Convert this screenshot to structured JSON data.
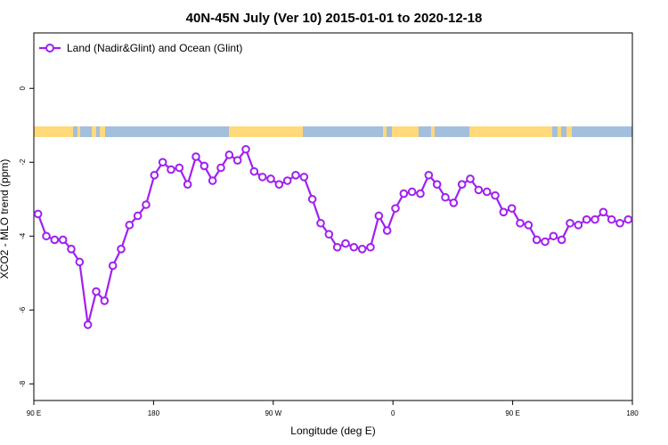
{
  "chart_data": {
    "type": "line",
    "title": "40N-45N July (Ver 10)   2015-01-01 to 2020-12-18",
    "xlabel": "Longitude (deg E)",
    "ylabel": "XCO2 - MLO trend (ppm)",
    "xlim": [
      90,
      450
    ],
    "ylim": [
      -8.45,
      1.5
    ],
    "x_ticks": [
      {
        "value": 90,
        "label": "90 E"
      },
      {
        "value": 162,
        "label": "180"
      },
      {
        "value": 234,
        "label": "90 W"
      },
      {
        "value": 306,
        "label": "0"
      },
      {
        "value": 378,
        "label": "90 E"
      },
      {
        "value": 450,
        "label": "180"
      }
    ],
    "y_ticks": [
      0,
      -2,
      -4,
      -6,
      -8
    ],
    "y_tick_labels": [
      "0",
      "-2",
      "-4",
      "-6",
      "-8"
    ],
    "grid": false,
    "legend_position": "top-left",
    "series": [
      {
        "name": "Land (Nadir&Glint) and Ocean (Glint)",
        "color": "#a020f0",
        "x": [
          92.5,
          97.5,
          102.5,
          107.5,
          112.5,
          117.5,
          122.5,
          127.5,
          132.5,
          137.5,
          142.5,
          147.5,
          152.5,
          157.5,
          162.5,
          167.5,
          172.5,
          177.5,
          182.5,
          187.5,
          192.5,
          197.5,
          202.5,
          207.5,
          212.5,
          217.5,
          222.5,
          227.5,
          232.5,
          237.5,
          242.5,
          247.5,
          252.5,
          257.5,
          262.5,
          267.5,
          272.5,
          277.5,
          282.5,
          287.5,
          292.5,
          297.5,
          302.5,
          307.5,
          312.5,
          317.5,
          322.5,
          327.5,
          332.5,
          337.5,
          342.5,
          347.5,
          352.5,
          357.5,
          362.5,
          367.5,
          372.5,
          377.5,
          382.5,
          387.5,
          392.5,
          397.5,
          402.5,
          407.5,
          412.5,
          417.5,
          422.5,
          427.5,
          432.5,
          437.5,
          442.5,
          447.5
        ],
        "y": [
          -3.4,
          -4.0,
          -4.1,
          -4.1,
          -4.35,
          -4.7,
          -6.4,
          -5.5,
          -5.75,
          -4.8,
          -4.35,
          -3.7,
          -3.45,
          -3.15,
          -2.35,
          -2.0,
          -2.2,
          -2.15,
          -2.6,
          -1.85,
          -2.1,
          -2.5,
          -2.15,
          -1.8,
          -1.95,
          -1.65,
          -2.25,
          -2.4,
          -2.45,
          -2.6,
          -2.5,
          -2.35,
          -2.4,
          -3.0,
          -3.65,
          -3.95,
          -4.3,
          -4.2,
          -4.3,
          -4.35,
          -4.3,
          -3.45,
          -3.85,
          -3.25,
          -2.85,
          -2.8,
          -2.85,
          -2.35,
          -2.6,
          -2.95,
          -3.1,
          -2.6,
          -2.45,
          -2.75,
          -2.8,
          -2.9,
          -3.35,
          -3.25,
          -3.65,
          -3.7,
          -4.1,
          -4.15,
          -4.0,
          -4.1,
          -3.65,
          -3.7,
          -3.55,
          -3.55,
          -3.35,
          -3.55,
          -3.65,
          -3.55
        ]
      }
    ]
  },
  "surface_bar": {
    "land_color": "#ffd97a",
    "ocean_color": "#a4bedd"
  }
}
